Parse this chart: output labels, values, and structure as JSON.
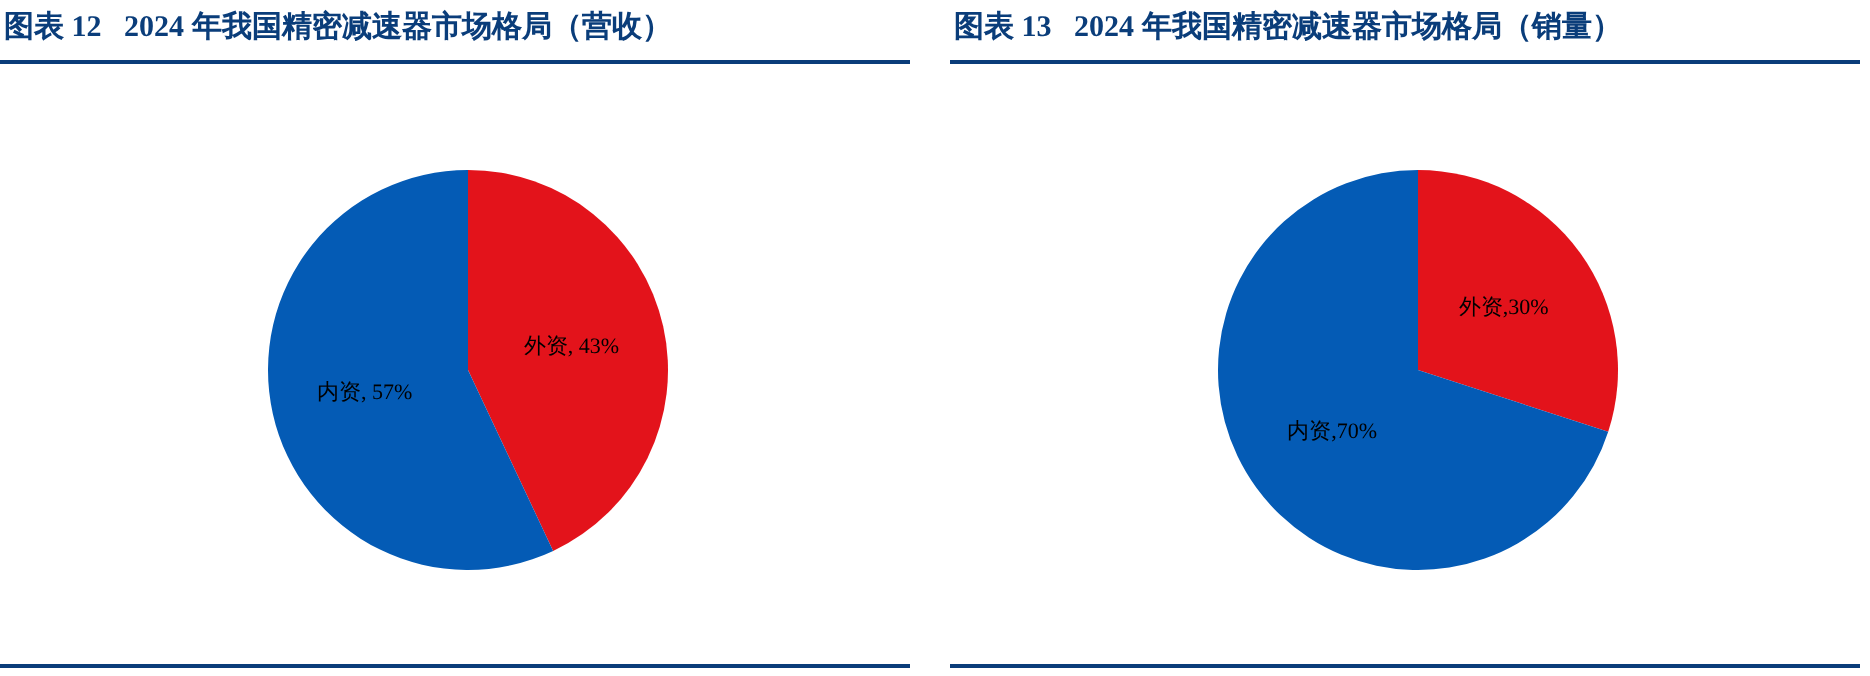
{
  "chart_data": [
    {
      "type": "pie",
      "title": "图表 12   2024 年我国精密减速器市场格局（营收）",
      "categories": [
        "外资",
        "内资"
      ],
      "values": [
        43,
        57
      ],
      "colors": [
        "#e3131b",
        "#045bb5"
      ],
      "value_labels": [
        ", 43%",
        ", 57%"
      ],
      "legend": false
    },
    {
      "type": "pie",
      "title": "图表 13   2024 年我国精密减速器市场格局（销量）",
      "categories": [
        "外资",
        "内资"
      ],
      "values": [
        30,
        70
      ],
      "colors": [
        "#e3131b",
        "#045bb5"
      ],
      "value_labels": [
        ",30%",
        ",70%"
      ],
      "legend": false
    }
  ]
}
